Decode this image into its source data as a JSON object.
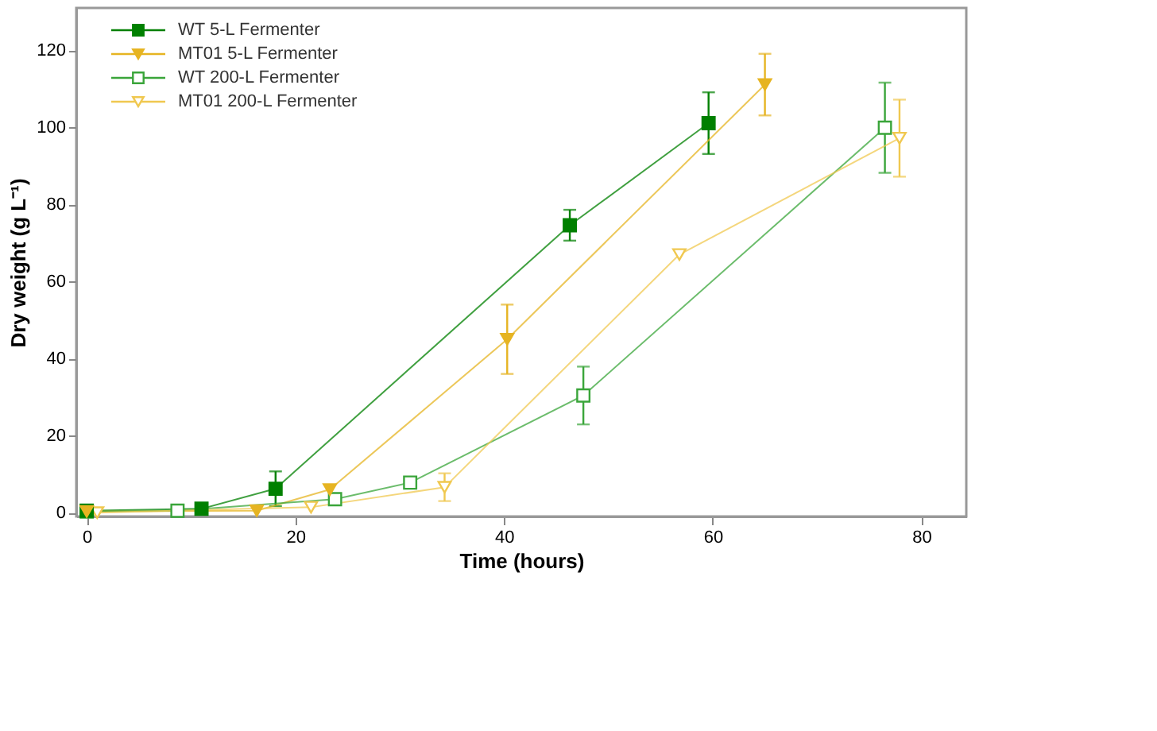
{
  "chart_data": {
    "type": "line",
    "xlabel": "Time (hours)",
    "ylabel": "Dry weight (g L⁻¹)",
    "xlim": [
      -1,
      84.3
    ],
    "xticks": [
      0,
      20,
      40,
      60,
      80
    ],
    "ylim": [
      -1,
      131
    ],
    "yticks": [
      0,
      20,
      40,
      60,
      80,
      100,
      120
    ],
    "grid": false,
    "legend": "top left",
    "line_style": "solid",
    "series": [
      {
        "name": "WT 5-L Fermenter",
        "color": "#008000",
        "marker": "square",
        "x": [
          0,
          11,
          18.1,
          46.3,
          59.6
        ],
        "values": [
          0.5,
          1,
          6.2,
          74.6,
          101.1
        ],
        "errors": [
          null,
          null,
          4.5,
          4,
          8
        ]
      },
      {
        "name": "MT01 5-L Fermenter",
        "color": "#e6b422",
        "marker": "triangle",
        "x": [
          0,
          16.3,
          23.3,
          40.3,
          65
        ],
        "values": [
          0.3,
          0.5,
          6,
          45,
          111.1
        ],
        "errors": [
          null,
          null,
          null,
          9,
          8
        ]
      },
      {
        "name": "WT 200-L Fermenter",
        "color": "#3aa53a",
        "marker": "square",
        "x": [
          0,
          8.7,
          23.8,
          31,
          47.6,
          76.5
        ],
        "values": [
          0.3,
          0.5,
          3.5,
          7.8,
          30.4,
          99.9
        ],
        "errors": [
          null,
          null,
          null,
          null,
          7.5,
          11.7
        ]
      },
      {
        "name": "MT01 200-L Fermenter",
        "color": "#f0c850",
        "marker": "triangle",
        "x": [
          1,
          21.5,
          34.3,
          56.8,
          77.9
        ],
        "values": [
          0,
          1.4,
          6.6,
          67,
          97.2
        ],
        "errors": [
          null,
          null,
          3.6,
          null,
          10
        ]
      }
    ]
  }
}
